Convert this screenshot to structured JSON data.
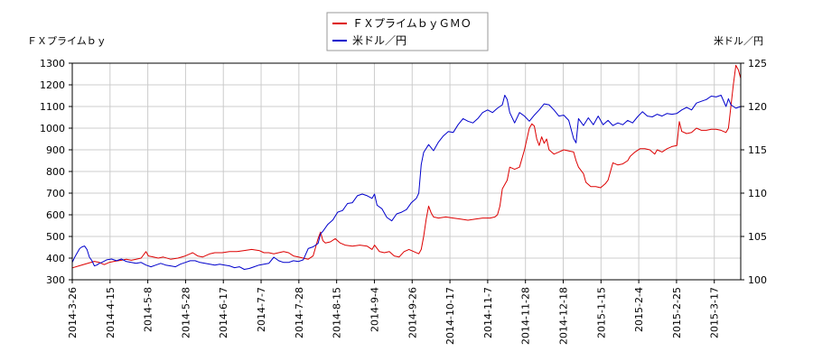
{
  "chart_data": {
    "type": "line",
    "left_axis_label": "ＦＸプライムｂｙ",
    "right_axis_label": "米ドル／円",
    "x_ticks": [
      "2014-3-26",
      "2014-4-15",
      "2014-5-8",
      "2014-5-28",
      "2014-6-17",
      "2014-7-7",
      "2014-7-28",
      "2014-8-15",
      "2014-9-4",
      "2014-9-26",
      "2014-10-17",
      "2014-11-7",
      "2014-11-28",
      "2014-12-18",
      "2015-1-15",
      "2015-2-4",
      "2015-2-25",
      "2015-3-17"
    ],
    "y_left": {
      "min": 300,
      "max": 1300,
      "ticks": [
        300,
        400,
        500,
        600,
        700,
        800,
        900,
        1000,
        1100,
        1200,
        1300
      ]
    },
    "y_right": {
      "min": 100,
      "max": 125,
      "ticks": [
        100,
        105,
        110,
        115,
        120,
        125
      ]
    },
    "grid": true,
    "legend_position": "top",
    "series": [
      {
        "name": "ＦＸプライムｂｙＧＭＯ",
        "axis": "left",
        "color": "#dd0000",
        "values": [
          [
            0,
            355
          ],
          [
            3,
            365
          ],
          [
            6,
            375
          ],
          [
            9,
            385
          ],
          [
            11,
            380
          ],
          [
            13,
            370
          ],
          [
            15,
            380
          ],
          [
            17,
            385
          ],
          [
            20,
            390
          ],
          [
            22,
            395
          ],
          [
            24,
            390
          ],
          [
            26,
            395
          ],
          [
            28,
            400
          ],
          [
            30,
            430
          ],
          [
            31,
            410
          ],
          [
            33,
            405
          ],
          [
            35,
            400
          ],
          [
            37,
            405
          ],
          [
            40,
            395
          ],
          [
            43,
            400
          ],
          [
            46,
            410
          ],
          [
            48,
            420
          ],
          [
            49,
            425
          ],
          [
            51,
            410
          ],
          [
            53,
            405
          ],
          [
            56,
            420
          ],
          [
            58,
            425
          ],
          [
            61,
            425
          ],
          [
            64,
            430
          ],
          [
            67,
            430
          ],
          [
            70,
            435
          ],
          [
            73,
            440
          ],
          [
            76,
            435
          ],
          [
            78,
            425
          ],
          [
            80,
            425
          ],
          [
            82,
            420
          ],
          [
            84,
            425
          ],
          [
            86,
            430
          ],
          [
            88,
            425
          ],
          [
            90,
            410
          ],
          [
            92,
            405
          ],
          [
            94,
            400
          ],
          [
            96,
            395
          ],
          [
            98,
            410
          ],
          [
            100,
            490
          ],
          [
            101,
            520
          ],
          [
            102,
            480
          ],
          [
            103,
            470
          ],
          [
            105,
            475
          ],
          [
            107,
            490
          ],
          [
            109,
            470
          ],
          [
            111,
            460
          ],
          [
            114,
            455
          ],
          [
            117,
            460
          ],
          [
            120,
            455
          ],
          [
            122,
            440
          ],
          [
            123,
            460
          ],
          [
            125,
            430
          ],
          [
            127,
            425
          ],
          [
            129,
            430
          ],
          [
            131,
            410
          ],
          [
            133,
            405
          ],
          [
            135,
            430
          ],
          [
            137,
            440
          ],
          [
            139,
            430
          ],
          [
            141,
            420
          ],
          [
            142,
            440
          ],
          [
            143,
            500
          ],
          [
            144,
            580
          ],
          [
            145,
            640
          ],
          [
            146,
            610
          ],
          [
            147,
            590
          ],
          [
            149,
            585
          ],
          [
            152,
            590
          ],
          [
            155,
            585
          ],
          [
            158,
            580
          ],
          [
            161,
            575
          ],
          [
            164,
            580
          ],
          [
            167,
            585
          ],
          [
            170,
            585
          ],
          [
            172,
            590
          ],
          [
            173,
            600
          ],
          [
            174,
            640
          ],
          [
            175,
            720
          ],
          [
            177,
            760
          ],
          [
            178,
            820
          ],
          [
            180,
            810
          ],
          [
            182,
            820
          ],
          [
            184,
            900
          ],
          [
            186,
            1000
          ],
          [
            187,
            1020
          ],
          [
            188,
            1010
          ],
          [
            189,
            950
          ],
          [
            190,
            920
          ],
          [
            191,
            960
          ],
          [
            192,
            930
          ],
          [
            193,
            950
          ],
          [
            194,
            900
          ],
          [
            196,
            880
          ],
          [
            198,
            890
          ],
          [
            200,
            900
          ],
          [
            202,
            895
          ],
          [
            204,
            890
          ],
          [
            205,
            850
          ],
          [
            206,
            820
          ],
          [
            208,
            790
          ],
          [
            209,
            750
          ],
          [
            211,
            730
          ],
          [
            213,
            730
          ],
          [
            215,
            725
          ],
          [
            217,
            745
          ],
          [
            218,
            760
          ],
          [
            219,
            800
          ],
          [
            220,
            840
          ],
          [
            222,
            830
          ],
          [
            224,
            835
          ],
          [
            226,
            850
          ],
          [
            227,
            870
          ],
          [
            229,
            890
          ],
          [
            231,
            905
          ],
          [
            233,
            905
          ],
          [
            235,
            900
          ],
          [
            237,
            880
          ],
          [
            238,
            900
          ],
          [
            240,
            890
          ],
          [
            242,
            905
          ],
          [
            244,
            915
          ],
          [
            246,
            920
          ],
          [
            247,
            1030
          ],
          [
            248,
            985
          ],
          [
            250,
            975
          ],
          [
            252,
            980
          ],
          [
            254,
            1000
          ],
          [
            256,
            990
          ],
          [
            258,
            990
          ],
          [
            260,
            995
          ],
          [
            262,
            995
          ],
          [
            264,
            990
          ],
          [
            266,
            980
          ],
          [
            267,
            1000
          ],
          [
            268,
            1100
          ],
          [
            269,
            1200
          ],
          [
            270,
            1290
          ],
          [
            271,
            1270
          ],
          [
            272,
            1230
          ]
        ]
      },
      {
        "name": "米ドル／円",
        "axis": "right",
        "color": "#0000cc",
        "values": [
          [
            0,
            102.0
          ],
          [
            1,
            102.6
          ],
          [
            2,
            103.1
          ],
          [
            3,
            103.6
          ],
          [
            4,
            103.8
          ],
          [
            5,
            103.9
          ],
          [
            6,
            103.5
          ],
          [
            7,
            102.6
          ],
          [
            8,
            102.2
          ],
          [
            9,
            101.6
          ],
          [
            10,
            101.7
          ],
          [
            11,
            101.9
          ],
          [
            12,
            102.0
          ],
          [
            14,
            102.3
          ],
          [
            16,
            102.4
          ],
          [
            18,
            102.2
          ],
          [
            20,
            102.4
          ],
          [
            22,
            102.1
          ],
          [
            24,
            102.0
          ],
          [
            26,
            101.9
          ],
          [
            28,
            102.0
          ],
          [
            30,
            101.7
          ],
          [
            32,
            101.5
          ],
          [
            34,
            101.7
          ],
          [
            36,
            101.9
          ],
          [
            38,
            101.7
          ],
          [
            40,
            101.6
          ],
          [
            42,
            101.5
          ],
          [
            44,
            101.8
          ],
          [
            46,
            102.0
          ],
          [
            48,
            102.2
          ],
          [
            50,
            102.2
          ],
          [
            52,
            102.0
          ],
          [
            54,
            101.9
          ],
          [
            56,
            101.8
          ],
          [
            58,
            101.7
          ],
          [
            60,
            101.8
          ],
          [
            62,
            101.7
          ],
          [
            64,
            101.6
          ],
          [
            66,
            101.4
          ],
          [
            68,
            101.5
          ],
          [
            70,
            101.2
          ],
          [
            72,
            101.3
          ],
          [
            74,
            101.5
          ],
          [
            76,
            101.7
          ],
          [
            78,
            101.8
          ],
          [
            80,
            101.9
          ],
          [
            82,
            102.6
          ],
          [
            84,
            102.2
          ],
          [
            86,
            102.0
          ],
          [
            88,
            102.0
          ],
          [
            90,
            102.2
          ],
          [
            92,
            102.1
          ],
          [
            94,
            102.3
          ],
          [
            96,
            103.6
          ],
          [
            98,
            103.8
          ],
          [
            99,
            104.0
          ],
          [
            100,
            104.2
          ],
          [
            101,
            105.3
          ],
          [
            102,
            105.6
          ],
          [
            104,
            106.4
          ],
          [
            106,
            106.9
          ],
          [
            108,
            107.8
          ],
          [
            110,
            108.0
          ],
          [
            112,
            108.8
          ],
          [
            114,
            108.9
          ],
          [
            116,
            109.7
          ],
          [
            118,
            109.9
          ],
          [
            120,
            109.7
          ],
          [
            122,
            109.4
          ],
          [
            123,
            109.9
          ],
          [
            124,
            108.6
          ],
          [
            126,
            108.2
          ],
          [
            128,
            107.2
          ],
          [
            130,
            106.8
          ],
          [
            132,
            107.6
          ],
          [
            134,
            107.8
          ],
          [
            136,
            108.1
          ],
          [
            138,
            108.9
          ],
          [
            140,
            109.4
          ],
          [
            141,
            110.0
          ],
          [
            142,
            113.3
          ],
          [
            143,
            114.7
          ],
          [
            145,
            115.6
          ],
          [
            147,
            114.9
          ],
          [
            149,
            115.9
          ],
          [
            151,
            116.6
          ],
          [
            153,
            117.1
          ],
          [
            155,
            117.0
          ],
          [
            157,
            117.9
          ],
          [
            159,
            118.6
          ],
          [
            161,
            118.3
          ],
          [
            163,
            118.1
          ],
          [
            165,
            118.6
          ],
          [
            167,
            119.3
          ],
          [
            169,
            119.6
          ],
          [
            171,
            119.3
          ],
          [
            173,
            119.8
          ],
          [
            175,
            120.2
          ],
          [
            176,
            121.3
          ],
          [
            177,
            120.8
          ],
          [
            178,
            119.3
          ],
          [
            180,
            118.1
          ],
          [
            182,
            119.3
          ],
          [
            184,
            118.9
          ],
          [
            186,
            118.3
          ],
          [
            188,
            119.0
          ],
          [
            190,
            119.6
          ],
          [
            192,
            120.3
          ],
          [
            194,
            120.2
          ],
          [
            196,
            119.6
          ],
          [
            198,
            118.9
          ],
          [
            200,
            119.0
          ],
          [
            202,
            118.4
          ],
          [
            204,
            116.3
          ],
          [
            205,
            115.8
          ],
          [
            206,
            118.6
          ],
          [
            208,
            117.8
          ],
          [
            210,
            118.7
          ],
          [
            212,
            117.9
          ],
          [
            214,
            118.9
          ],
          [
            216,
            117.9
          ],
          [
            218,
            118.4
          ],
          [
            220,
            117.8
          ],
          [
            222,
            118.1
          ],
          [
            224,
            117.9
          ],
          [
            226,
            118.4
          ],
          [
            228,
            118.1
          ],
          [
            230,
            118.8
          ],
          [
            232,
            119.4
          ],
          [
            234,
            118.9
          ],
          [
            236,
            118.8
          ],
          [
            238,
            119.1
          ],
          [
            240,
            118.9
          ],
          [
            242,
            119.2
          ],
          [
            244,
            119.1
          ],
          [
            246,
            119.2
          ],
          [
            248,
            119.6
          ],
          [
            250,
            119.9
          ],
          [
            252,
            119.6
          ],
          [
            254,
            120.4
          ],
          [
            256,
            120.6
          ],
          [
            258,
            120.8
          ],
          [
            260,
            121.2
          ],
          [
            262,
            121.1
          ],
          [
            264,
            121.3
          ],
          [
            266,
            120.0
          ],
          [
            267,
            120.9
          ],
          [
            268,
            120.2
          ],
          [
            270,
            119.8
          ],
          [
            272,
            120.0
          ]
        ]
      }
    ]
  }
}
